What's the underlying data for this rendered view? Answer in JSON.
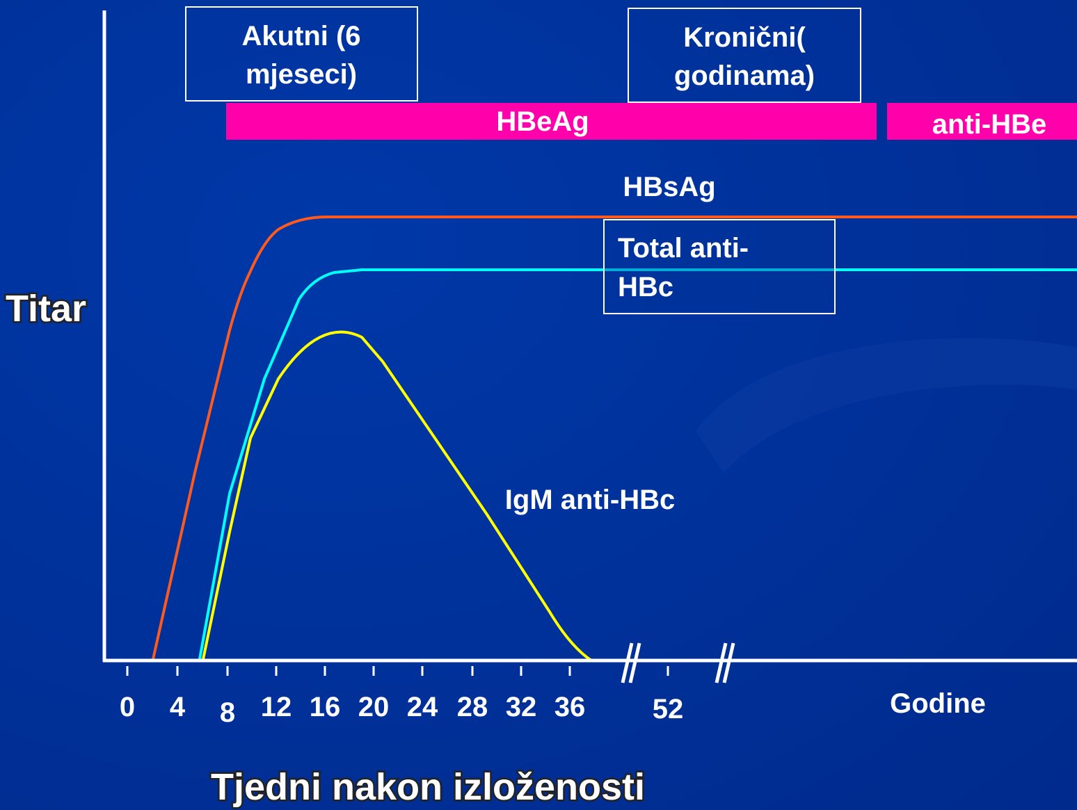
{
  "phases": {
    "acute": [
      "Akutni (6",
      "mjeseci)"
    ],
    "chronic": [
      "Kronični(",
      "godinama)"
    ]
  },
  "bars": {
    "hbeag": "HBeAg",
    "anti_hbe": "anti-HBe"
  },
  "curves": {
    "hbsag": "HBsAg",
    "total_anti_hbc": [
      "Total anti-",
      "HBc"
    ],
    "igm_anti_hbc": "IgM anti-HBc"
  },
  "y_axis": {
    "label": "Titar"
  },
  "x_axis": {
    "tick_labels": [
      "0",
      "4",
      "8",
      "12",
      "16",
      "20",
      "24",
      "28",
      "32",
      "36",
      "52"
    ],
    "years_label": "Godine",
    "title": "Tjedni nakon izloženosti"
  }
}
